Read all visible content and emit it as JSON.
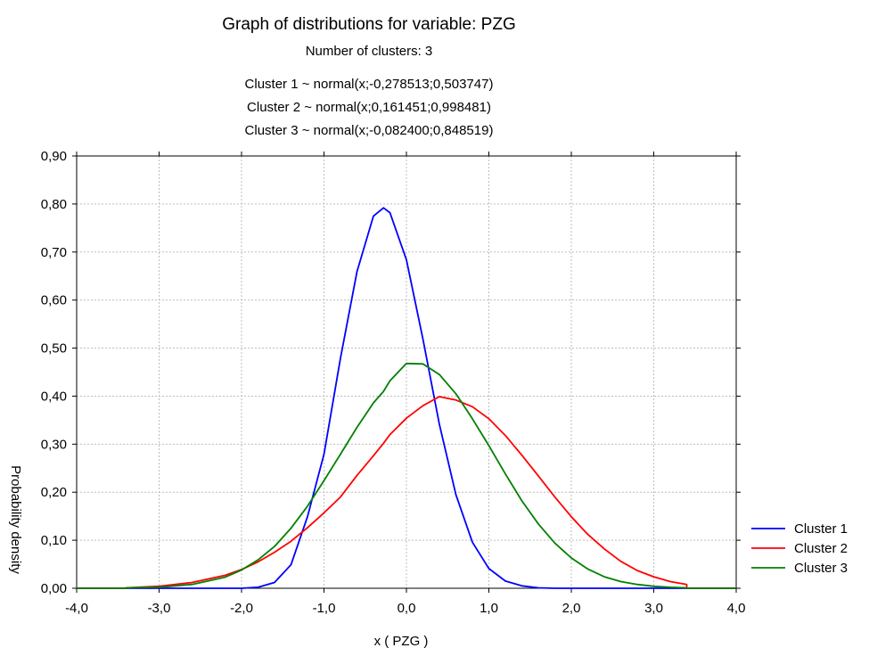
{
  "chart_data": {
    "type": "line",
    "title": "Graph of distributions for variable: PZG",
    "subtitles": [
      "Number of clusters: 3",
      "Cluster 1 ~ normal(x;-0,278513;0,503747)",
      "Cluster 2 ~ normal(x;0,161451;0,998481)",
      "Cluster 3 ~ normal(x;-0,082400;0,848519)"
    ],
    "xlabel": "x ( PZG )",
    "ylabel": "Probability density",
    "xlim": [
      -4,
      4
    ],
    "ylim": [
      0,
      0.9
    ],
    "x_ticks": [
      -4,
      -3,
      -2,
      -1,
      0,
      1,
      2,
      3,
      4
    ],
    "x_tick_labels": [
      "-4,0",
      "-3,0",
      "-2,0",
      "-1,0",
      "0,0",
      "1,0",
      "2,0",
      "3,0",
      "4,0"
    ],
    "y_ticks": [
      0,
      0.1,
      0.2,
      0.3,
      0.4,
      0.5,
      0.6,
      0.7,
      0.8,
      0.9
    ],
    "y_tick_labels": [
      "0,00",
      "0,10",
      "0,20",
      "0,30",
      "0,40",
      "0,50",
      "0,60",
      "0,70",
      "0,80",
      "0,90"
    ],
    "grid": true,
    "legend_position": "right-bottom",
    "x": [
      -3.4,
      -3.0,
      -2.6,
      -2.2,
      -2.0,
      -1.8,
      -1.6,
      -1.4,
      -1.2,
      -1.0,
      -0.8,
      -0.6,
      -0.4,
      -0.278,
      -0.2,
      0.0,
      0.2,
      0.4,
      0.6,
      0.8,
      1.0,
      1.2,
      1.4,
      1.6,
      1.8,
      2.0,
      2.2,
      2.4,
      2.6,
      2.8,
      3.0,
      3.2,
      3.4
    ],
    "series": [
      {
        "name": "Cluster 1",
        "color": "#0000ff",
        "values": [
          0.0,
          0.0,
          0.0,
          0.0,
          0.0,
          0.002,
          0.012,
          0.049,
          0.149,
          0.279,
          0.479,
          0.659,
          0.775,
          0.792,
          0.782,
          0.684,
          0.519,
          0.341,
          0.195,
          0.096,
          0.041,
          0.015,
          0.005,
          0.001,
          0.0,
          0.0,
          0.0,
          0.0,
          0.0,
          0.0,
          0.0,
          0.0,
          0.0
        ]
      },
      {
        "name": "Cluster 2",
        "color": "#ff0000",
        "values": [
          0.001,
          0.004,
          0.012,
          0.027,
          0.039,
          0.055,
          0.075,
          0.098,
          0.126,
          0.157,
          0.19,
          0.235,
          0.276,
          0.302,
          0.32,
          0.354,
          0.38,
          0.399,
          0.392,
          0.378,
          0.353,
          0.318,
          0.277,
          0.234,
          0.19,
          0.149,
          0.112,
          0.082,
          0.056,
          0.037,
          0.024,
          0.014,
          0.008
        ]
      },
      {
        "name": "Cluster 3",
        "color": "#008000",
        "values": [
          0.001,
          0.002,
          0.008,
          0.023,
          0.038,
          0.059,
          0.087,
          0.125,
          0.171,
          0.224,
          0.279,
          0.335,
          0.386,
          0.41,
          0.432,
          0.468,
          0.467,
          0.445,
          0.405,
          0.353,
          0.297,
          0.238,
          0.182,
          0.134,
          0.094,
          0.063,
          0.04,
          0.024,
          0.014,
          0.008,
          0.004,
          0.002,
          0.001
        ]
      }
    ]
  }
}
